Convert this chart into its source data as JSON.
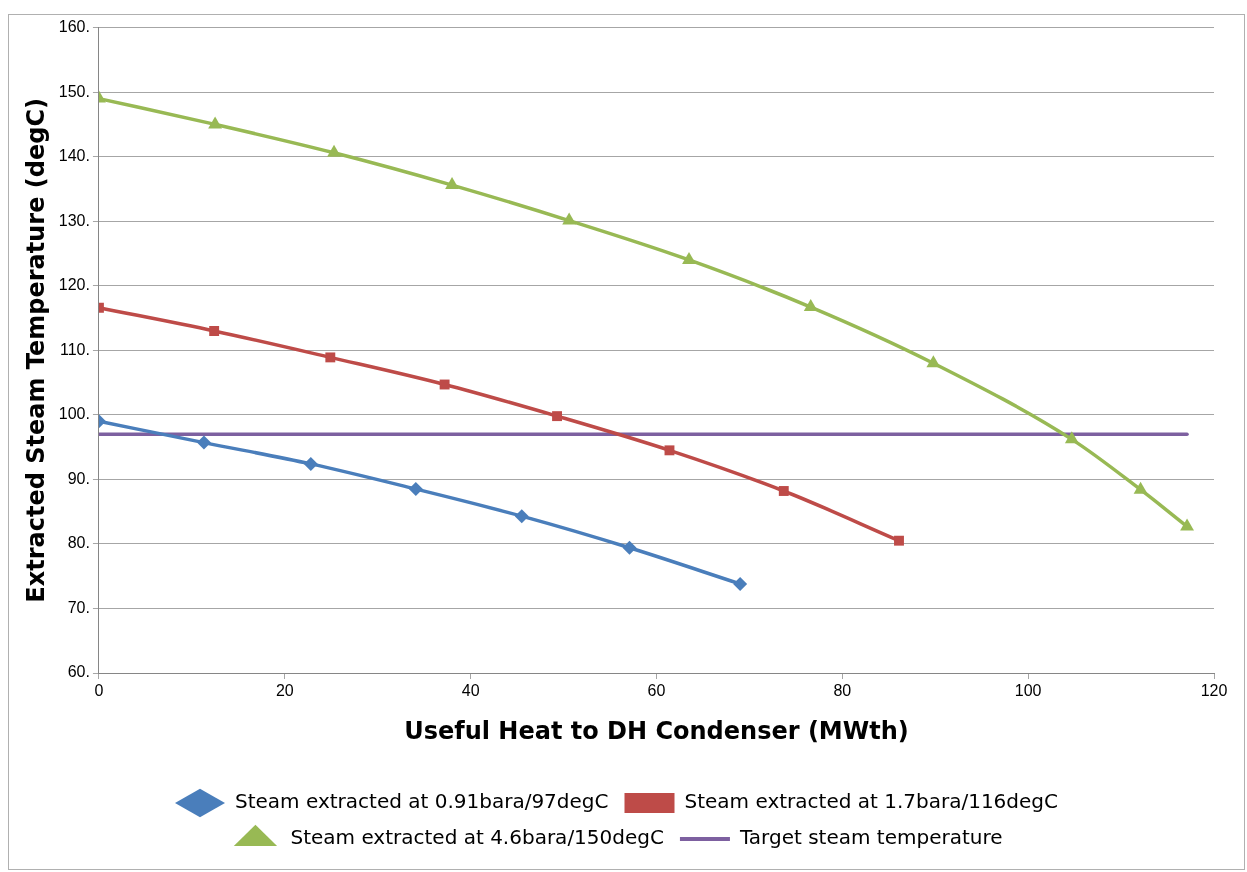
{
  "chart_data": {
    "type": "line",
    "xlabel": "Useful Heat to DH Condenser (MWth)",
    "ylabel": "Extracted Steam Temperature (degC)",
    "xlim": [
      0,
      120
    ],
    "xticks": [
      0,
      20,
      40,
      60,
      80,
      100,
      120
    ],
    "ylim": [
      60,
      160
    ],
    "yticks": [
      {
        "value": 60,
        "label": "60."
      },
      {
        "value": 70,
        "label": "70."
      },
      {
        "value": 80,
        "label": "80."
      },
      {
        "value": 90,
        "label": "90."
      },
      {
        "value": 100,
        "label": "100."
      },
      {
        "value": 110,
        "label": "110."
      },
      {
        "value": 120,
        "label": "120."
      },
      {
        "value": 130,
        "label": "130."
      },
      {
        "value": 140,
        "label": "140."
      },
      {
        "value": 150,
        "label": "150."
      },
      {
        "value": 160,
        "label": "160."
      }
    ],
    "grid": "y",
    "legend": "bottom",
    "line_style": "solid",
    "series": [
      {
        "name": "Steam extracted at 0.91bara/97degC",
        "color": "#4a7ebb",
        "marker": "diamond",
        "x": [
          0,
          11.3,
          22.8,
          34.1,
          45.5,
          57.1,
          69.0
        ],
        "values": [
          99.0,
          95.7,
          92.4,
          88.5,
          84.3,
          79.4,
          73.8
        ]
      },
      {
        "name": "Steam extracted at 1.7bara/116degC",
        "color": "#be4b48",
        "marker": "square",
        "x": [
          0,
          12.4,
          24.9,
          37.2,
          49.3,
          61.4,
          73.7,
          86.1
        ],
        "values": [
          116.6,
          113.0,
          108.9,
          104.7,
          99.8,
          94.5,
          88.2,
          80.5
        ]
      },
      {
        "name": "Steam extracted at 4.6bara/150degC",
        "color": "#98b954",
        "marker": "triangle",
        "x": [
          0,
          12.5,
          25.3,
          38.0,
          50.6,
          63.5,
          76.6,
          89.8,
          104.7,
          112.1,
          117.1
        ],
        "values": [
          149.0,
          145.0,
          140.6,
          135.6,
          130.1,
          124.0,
          116.7,
          108.0,
          96.2,
          88.4,
          82.7
        ]
      },
      {
        "name": "Target steam temperature",
        "color": "#7d60a0",
        "marker": "none",
        "x": [
          0,
          117.1
        ],
        "values": [
          97,
          97
        ]
      }
    ]
  }
}
